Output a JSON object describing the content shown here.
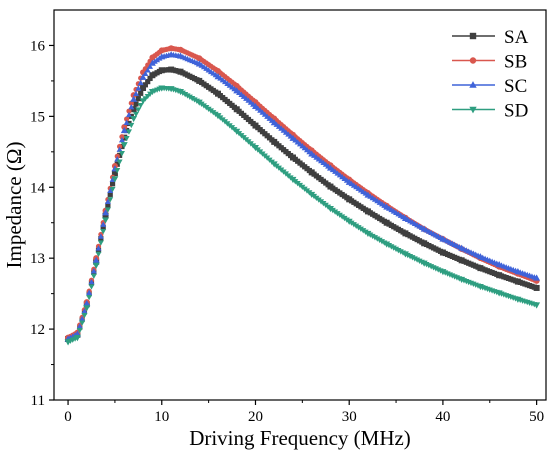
{
  "chart_data": {
    "type": "scatter",
    "xlabel": "Driving Frequency (MHz)",
    "ylabel": "Impedance (Ω)",
    "xlim": [
      -1.5,
      51
    ],
    "ylim": [
      11,
      16.5
    ],
    "xticks": [
      0,
      10,
      20,
      30,
      40,
      50
    ],
    "yticks": [
      11,
      12,
      13,
      14,
      15,
      16
    ],
    "legend_position": "top-right",
    "grid": false,
    "series": [
      {
        "name": "SA",
        "color": "#3f3f3f",
        "marker": "square",
        "points": [
          [
            0,
            11.86
          ],
          [
            1,
            11.92
          ],
          [
            2,
            12.35
          ],
          [
            3,
            12.95
          ],
          [
            4,
            13.6
          ],
          [
            5,
            14.2
          ],
          [
            6,
            14.7
          ],
          [
            7,
            15.1
          ],
          [
            8,
            15.4
          ],
          [
            9,
            15.58
          ],
          [
            10,
            15.65
          ],
          [
            11,
            15.66
          ],
          [
            12,
            15.63
          ],
          [
            14,
            15.5
          ],
          [
            16,
            15.32
          ],
          [
            18,
            15.1
          ],
          [
            20,
            14.87
          ],
          [
            22,
            14.64
          ],
          [
            24,
            14.42
          ],
          [
            26,
            14.21
          ],
          [
            28,
            14.01
          ],
          [
            30,
            13.83
          ],
          [
            32,
            13.66
          ],
          [
            34,
            13.5
          ],
          [
            36,
            13.35
          ],
          [
            38,
            13.21
          ],
          [
            40,
            13.08
          ],
          [
            42,
            12.97
          ],
          [
            44,
            12.86
          ],
          [
            46,
            12.76
          ],
          [
            48,
            12.67
          ],
          [
            50,
            12.58
          ]
        ]
      },
      {
        "name": "SB",
        "color": "#d9574e",
        "marker": "circle",
        "points": [
          [
            0,
            11.88
          ],
          [
            1,
            11.95
          ],
          [
            2,
            12.38
          ],
          [
            3,
            13.0
          ],
          [
            4,
            13.67
          ],
          [
            5,
            14.3
          ],
          [
            6,
            14.85
          ],
          [
            7,
            15.3
          ],
          [
            8,
            15.62
          ],
          [
            9,
            15.83
          ],
          [
            10,
            15.93
          ],
          [
            11,
            15.96
          ],
          [
            12,
            15.94
          ],
          [
            14,
            15.82
          ],
          [
            16,
            15.64
          ],
          [
            18,
            15.43
          ],
          [
            20,
            15.2
          ],
          [
            22,
            14.97
          ],
          [
            24,
            14.74
          ],
          [
            26,
            14.52
          ],
          [
            28,
            14.31
          ],
          [
            30,
            14.11
          ],
          [
            32,
            13.92
          ],
          [
            34,
            13.74
          ],
          [
            36,
            13.57
          ],
          [
            38,
            13.41
          ],
          [
            40,
            13.27
          ],
          [
            42,
            13.13
          ],
          [
            44,
            13.0
          ],
          [
            46,
            12.88
          ],
          [
            48,
            12.78
          ],
          [
            50,
            12.68
          ]
        ]
      },
      {
        "name": "SC",
        "color": "#3f63d9",
        "marker": "triangle-up",
        "points": [
          [
            0,
            11.86
          ],
          [
            1,
            11.93
          ],
          [
            2,
            12.36
          ],
          [
            3,
            12.97
          ],
          [
            4,
            13.64
          ],
          [
            5,
            14.26
          ],
          [
            6,
            14.8
          ],
          [
            7,
            15.24
          ],
          [
            8,
            15.55
          ],
          [
            9,
            15.75
          ],
          [
            10,
            15.84
          ],
          [
            11,
            15.87
          ],
          [
            12,
            15.85
          ],
          [
            14,
            15.74
          ],
          [
            16,
            15.56
          ],
          [
            18,
            15.36
          ],
          [
            20,
            15.14
          ],
          [
            22,
            14.91
          ],
          [
            24,
            14.69
          ],
          [
            26,
            14.47
          ],
          [
            28,
            14.27
          ],
          [
            30,
            14.07
          ],
          [
            32,
            13.89
          ],
          [
            34,
            13.72
          ],
          [
            36,
            13.56
          ],
          [
            38,
            13.41
          ],
          [
            40,
            13.27
          ],
          [
            42,
            13.14
          ],
          [
            44,
            13.02
          ],
          [
            46,
            12.91
          ],
          [
            48,
            12.81
          ],
          [
            50,
            12.72
          ]
        ]
      },
      {
        "name": "SD",
        "color": "#2e9e80",
        "marker": "triangle-down",
        "points": [
          [
            0,
            11.82
          ],
          [
            1,
            11.88
          ],
          [
            2,
            12.3
          ],
          [
            3,
            12.9
          ],
          [
            4,
            13.54
          ],
          [
            5,
            14.12
          ],
          [
            6,
            14.6
          ],
          [
            7,
            14.97
          ],
          [
            8,
            15.22
          ],
          [
            9,
            15.35
          ],
          [
            10,
            15.4
          ],
          [
            11,
            15.39
          ],
          [
            12,
            15.35
          ],
          [
            14,
            15.2
          ],
          [
            16,
            15.01
          ],
          [
            18,
            14.79
          ],
          [
            20,
            14.56
          ],
          [
            22,
            14.33
          ],
          [
            24,
            14.11
          ],
          [
            26,
            13.9
          ],
          [
            28,
            13.7
          ],
          [
            30,
            13.52
          ],
          [
            32,
            13.35
          ],
          [
            34,
            13.2
          ],
          [
            36,
            13.06
          ],
          [
            38,
            12.93
          ],
          [
            40,
            12.81
          ],
          [
            42,
            12.7
          ],
          [
            44,
            12.6
          ],
          [
            46,
            12.51
          ],
          [
            48,
            12.42
          ],
          [
            50,
            12.34
          ]
        ]
      }
    ]
  }
}
